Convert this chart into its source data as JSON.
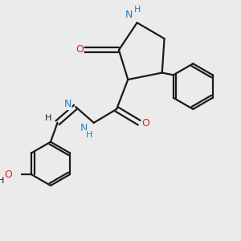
{
  "bg_color": "#ebebeb",
  "bond_color": "#1a1a1a",
  "N_color": "#1e7fc4",
  "O_color": "#dd2020",
  "line_width": 1.6,
  "dbo": 0.05,
  "xlim": [
    -1.5,
    3.0
  ],
  "ylim": [
    -3.2,
    2.0
  ]
}
